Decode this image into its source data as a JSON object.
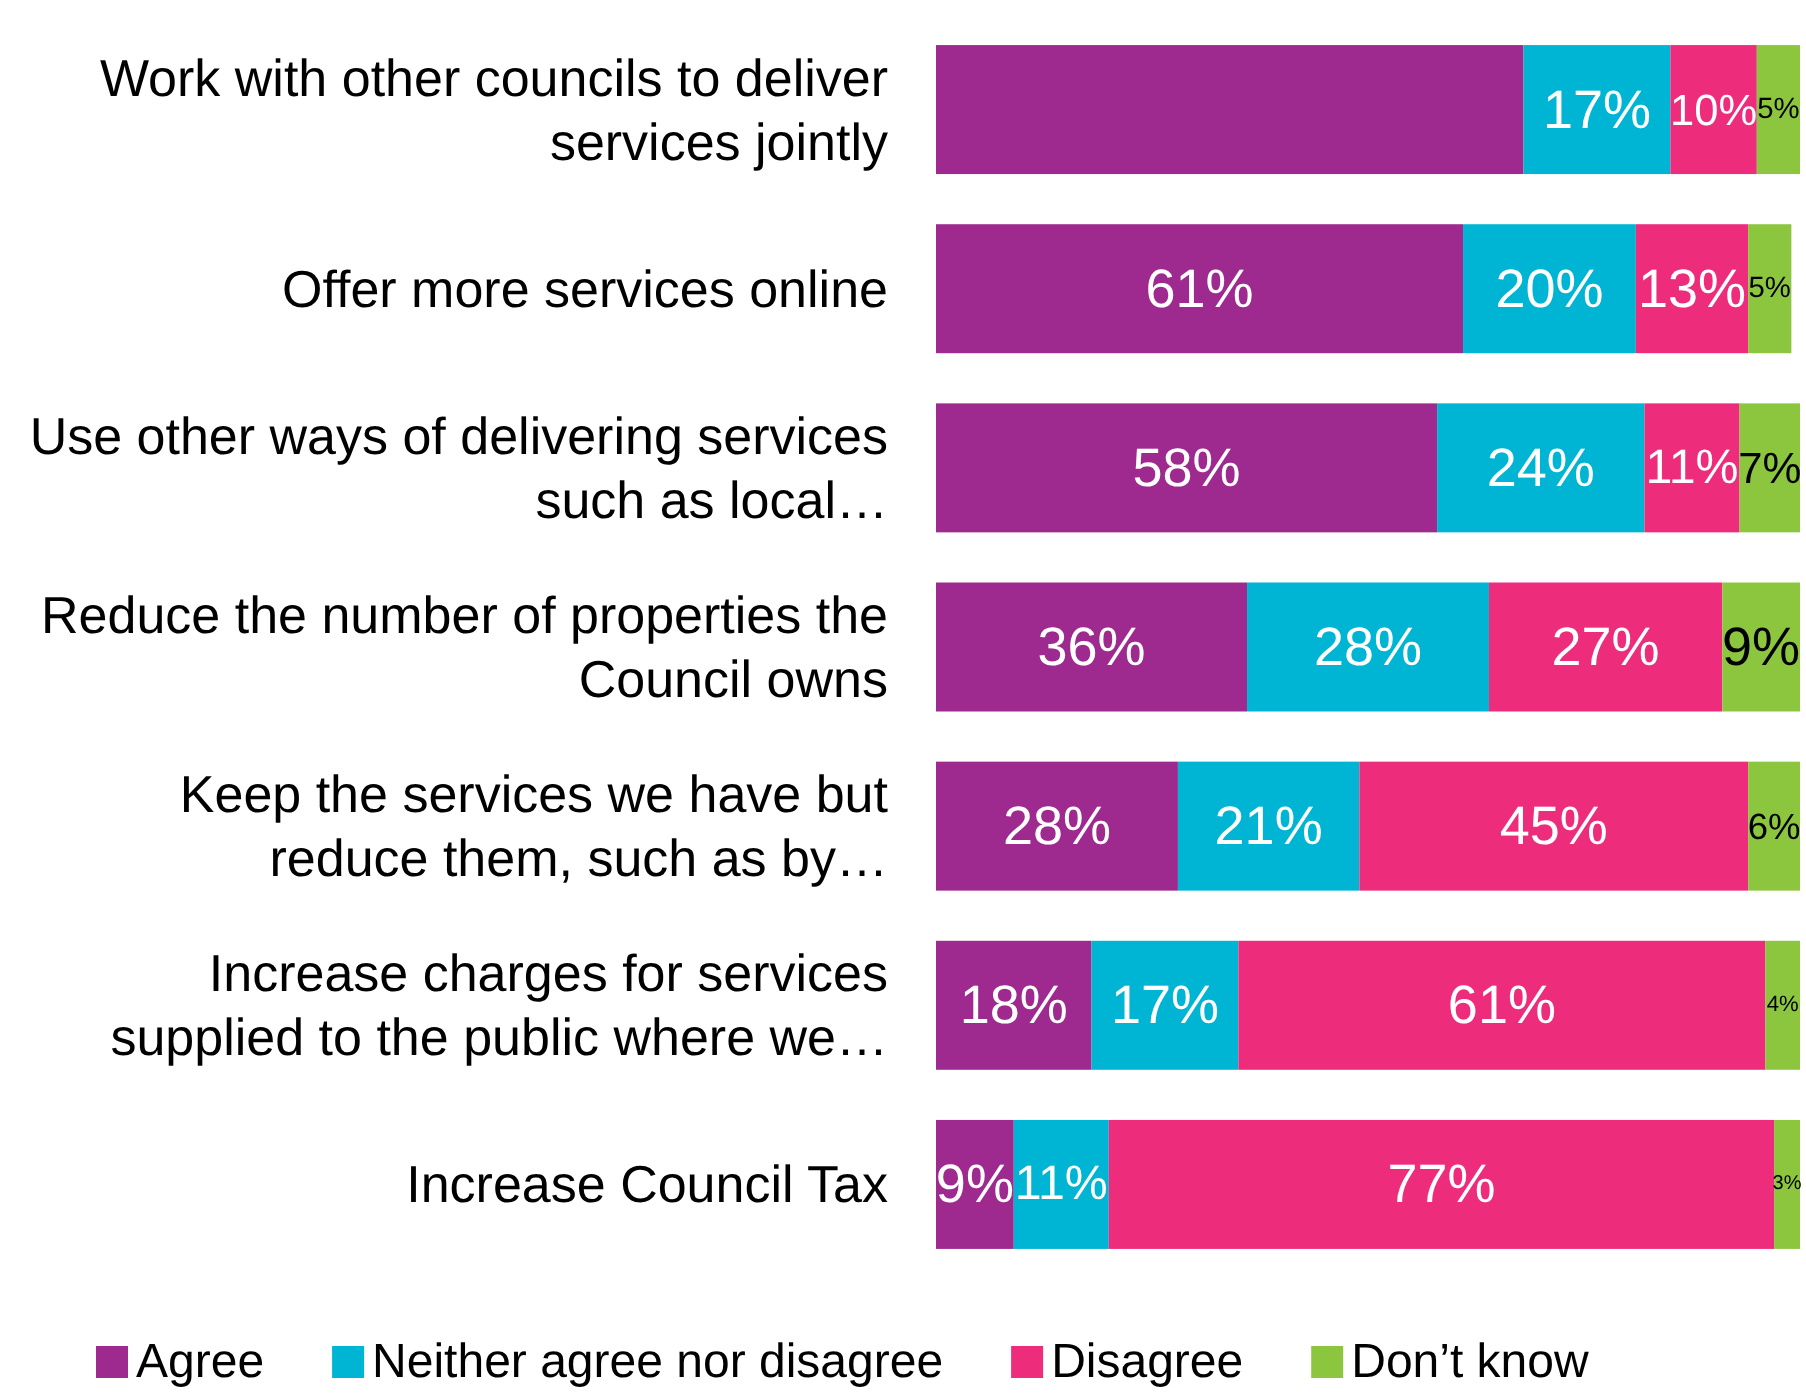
{
  "chart_data": {
    "type": "bar",
    "orientation": "horizontal",
    "stacked": true,
    "xlim": [
      0,
      100
    ],
    "tick_labels": "y",
    "legend": "bottom",
    "categories": [
      "Work with other councils to deliver services jointly",
      "Offer more services online",
      "Use other ways of delivering services such as local…",
      "Reduce the number of properties the Council owns",
      "Keep the services we have but reduce them, such as by…",
      "Increase charges for services supplied to the public where we…",
      "Increase Council Tax"
    ],
    "series": [
      {
        "name": "Agree",
        "color": "#9e2a8f",
        "values": [
          68,
          61,
          58,
          36,
          28,
          18,
          9
        ],
        "value_labels": [
          null,
          "61%",
          "58%",
          "36%",
          "28%",
          "18%",
          "9%"
        ]
      },
      {
        "name": "Neither agree nor disagree",
        "color": "#00b5d4",
        "values": [
          17,
          20,
          24,
          28,
          21,
          17,
          11
        ],
        "value_labels": [
          "17%",
          "20%",
          "24%",
          "28%",
          "21%",
          "17%",
          "11%"
        ]
      },
      {
        "name": "Disagree",
        "color": "#ee2c7c",
        "values": [
          10,
          13,
          11,
          27,
          45,
          61,
          77
        ],
        "value_labels": [
          "10%",
          "13%",
          "11%",
          "27%",
          "45%",
          "61%",
          "77%"
        ]
      },
      {
        "name": "Don’t know",
        "color": "#8cc63f",
        "values": [
          5,
          5,
          7,
          9,
          6,
          4,
          3
        ],
        "value_labels": [
          "5%",
          "5%",
          "7%",
          "9%",
          "6%",
          "4%",
          "3%"
        ]
      }
    ]
  }
}
